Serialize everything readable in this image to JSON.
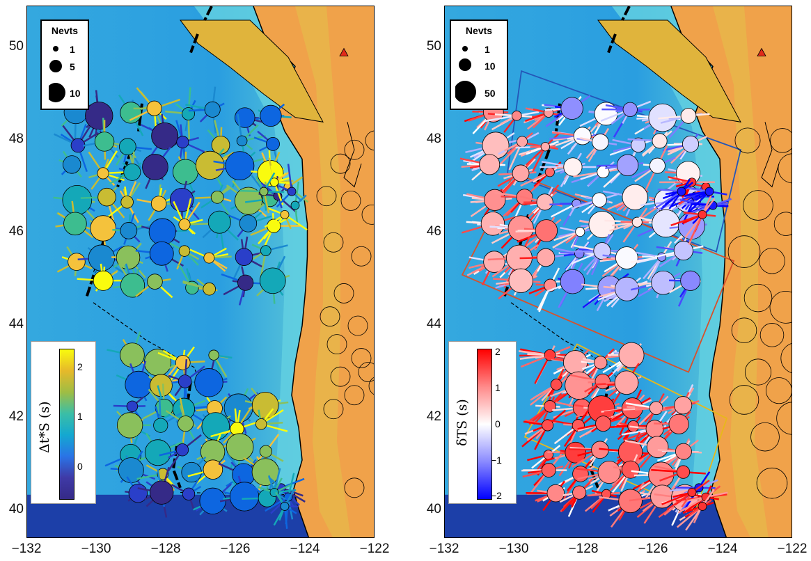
{
  "axes": {
    "yticks": [
      {
        "value": 40,
        "label": "40"
      },
      {
        "value": 42,
        "label": "42"
      },
      {
        "value": 44,
        "label": "44"
      },
      {
        "value": 46,
        "label": "46"
      },
      {
        "value": 48,
        "label": "48"
      },
      {
        "value": 50,
        "label": "50"
      }
    ],
    "xticks": [
      {
        "value": -132,
        "label": "−132"
      },
      {
        "value": -130,
        "label": "−130"
      },
      {
        "value": -128,
        "label": "−128"
      },
      {
        "value": -126,
        "label": "−126"
      },
      {
        "value": -124,
        "label": "−124"
      },
      {
        "value": -122,
        "label": "−122"
      }
    ],
    "lon_range": [
      -132,
      -122
    ],
    "lat_range": [
      39.4,
      50.9
    ]
  },
  "left": {
    "legend": {
      "title": "Nevts",
      "items": [
        "1",
        "5",
        "10"
      ]
    },
    "colorbar": {
      "label": "Δt*S (s)",
      "ticks": [
        "2",
        "1",
        "0"
      ],
      "colormap": "parula"
    }
  },
  "right": {
    "legend": {
      "title": "Nevts",
      "items": [
        "1",
        "10",
        "50"
      ]
    },
    "colorbar": {
      "label": "δTS (s)",
      "ticks": [
        "2",
        "1",
        "0",
        "−1",
        "−2"
      ],
      "colormap": "blue-white-red"
    },
    "boxes": [
      {
        "name": "northern-box",
        "color": "#2456b8"
      },
      {
        "name": "central-box",
        "color": "#d9502a"
      },
      {
        "name": "southern-box",
        "color": "#e8b81a"
      }
    ]
  },
  "colors": {
    "ocean_deep": "#1c3fa8",
    "ocean_shelf": "#3ab6e4",
    "land": "#f0a24a",
    "volcano": "#e22a1a"
  }
}
